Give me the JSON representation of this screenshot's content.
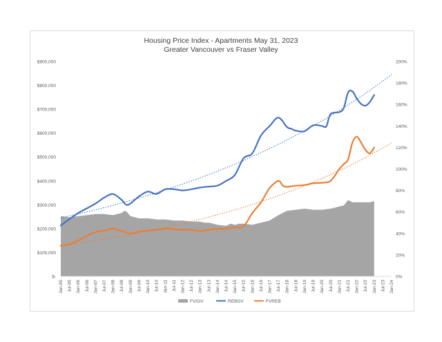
{
  "chart_data": {
    "type": "line",
    "title": "Housing Price Index - Apartments May 31, 2023",
    "subtitle": "Greater Vancouver vs Fraser Valley",
    "x_tick_labels": [
      "Jan-05",
      "Jul-05",
      "Jan-06",
      "Jul-06",
      "Jan-07",
      "Jul-07",
      "Jan-08",
      "Jul-08",
      "Jan-09",
      "Jul-09",
      "Jan-10",
      "Jul-10",
      "Jan-11",
      "Jul-11",
      "Jan-12",
      "Jul-12",
      "Jan-13",
      "Jul-13",
      "Jan-14",
      "Jul-14",
      "Jan-15",
      "Jul-15",
      "Jan-16",
      "Jul-16",
      "Jan-17",
      "Jul-17",
      "Jan-18",
      "Jul-18",
      "Jan-19",
      "Jul-19",
      "Jan-20",
      "Jul-20",
      "Jan-21",
      "Jul-21",
      "Jan-22",
      "Jul-22",
      "Jan-23",
      "Jul-23",
      "Jan-24"
    ],
    "y_left": {
      "min": 0,
      "max": 900000,
      "step": 100000,
      "tick_labels": [
        "$-",
        "$100,000",
        "$200,000",
        "$300,000",
        "$400,000",
        "$500,000",
        "$600,000",
        "$700,000",
        "$800,000",
        "$900,000"
      ]
    },
    "y_right": {
      "min": 0,
      "max": 200,
      "step": 20,
      "tick_labels": [
        "0%",
        "20%",
        "40%",
        "60%",
        "80%",
        "100%",
        "120%",
        "140%",
        "160%",
        "180%",
        "200%"
      ]
    },
    "x_range": [
      0,
      38
    ],
    "legend_position": "bottom",
    "grid": false,
    "series": [
      {
        "name": "FV/GV",
        "type": "area",
        "axis": "right",
        "color": "#a5a5a5",
        "x": [
          0,
          1,
          2,
          3,
          4,
          5,
          6,
          7,
          7.3,
          7.6,
          8,
          9,
          10,
          11,
          12,
          13,
          14,
          15,
          16,
          16.5,
          17,
          17.5,
          18,
          19,
          19.5,
          20,
          20.5,
          21,
          22,
          23,
          24,
          25,
          26,
          27,
          28,
          29,
          30,
          31,
          32,
          32.5,
          33,
          33.5,
          34,
          35,
          35.5,
          36
        ],
        "y": [
          56,
          55,
          56,
          57,
          58,
          58,
          57,
          59,
          61,
          60,
          56,
          54,
          54,
          53,
          53,
          52,
          52,
          51,
          51,
          50,
          50,
          49,
          48,
          47,
          49,
          48,
          49,
          49,
          48,
          50,
          52,
          57,
          61,
          62,
          63,
          62,
          62,
          63,
          65,
          66,
          71,
          69,
          69,
          69,
          69,
          70
        ]
      },
      {
        "name": "REBGV",
        "type": "line",
        "axis": "left",
        "color": "#4472c4",
        "trendline": "exponential",
        "x": [
          0,
          1,
          2,
          3,
          4,
          5,
          6,
          7,
          7.5,
          8,
          9,
          10,
          11,
          12,
          13,
          14,
          15,
          16,
          17,
          18,
          19,
          20,
          21,
          22,
          23,
          24,
          25,
          26,
          26.5,
          27,
          28,
          29,
          30,
          30.5,
          31,
          32,
          32.5,
          33,
          33.5,
          34,
          34.5,
          35,
          35.5,
          36
        ],
        "y": [
          213000,
          240000,
          265000,
          285000,
          305000,
          330000,
          345000,
          320000,
          300000,
          305000,
          335000,
          355000,
          345000,
          365000,
          365000,
          360000,
          365000,
          372000,
          376000,
          380000,
          400000,
          425000,
          495000,
          515000,
          590000,
          630000,
          665000,
          625000,
          618000,
          610000,
          608000,
          633000,
          630000,
          628000,
          680000,
          688000,
          705000,
          770000,
          775000,
          745000,
          722000,
          715000,
          730000,
          760000
        ]
      },
      {
        "name": "FVREB",
        "type": "line",
        "axis": "left",
        "color": "#ed7d31",
        "trendline": "exponential",
        "x": [
          0,
          1,
          2,
          3,
          4,
          5,
          6,
          7,
          8,
          9,
          10,
          11,
          12,
          13,
          14,
          15,
          16,
          17,
          18,
          19,
          20,
          21,
          22,
          23,
          24,
          25,
          25.5,
          26,
          27,
          28,
          29,
          30,
          31,
          32,
          32.5,
          33,
          33.5,
          34,
          34.5,
          35,
          35.5,
          36
        ],
        "y": [
          128000,
          135000,
          150000,
          170000,
          185000,
          192000,
          200000,
          190000,
          180000,
          188000,
          192000,
          195000,
          200000,
          198000,
          195000,
          195000,
          190000,
          195000,
          198000,
          200000,
          205000,
          210000,
          265000,
          310000,
          370000,
          400000,
          380000,
          375000,
          380000,
          382000,
          390000,
          392000,
          400000,
          450000,
          470000,
          490000,
          560000,
          585000,
          560000,
          530000,
          515000,
          540000
        ]
      }
    ]
  }
}
